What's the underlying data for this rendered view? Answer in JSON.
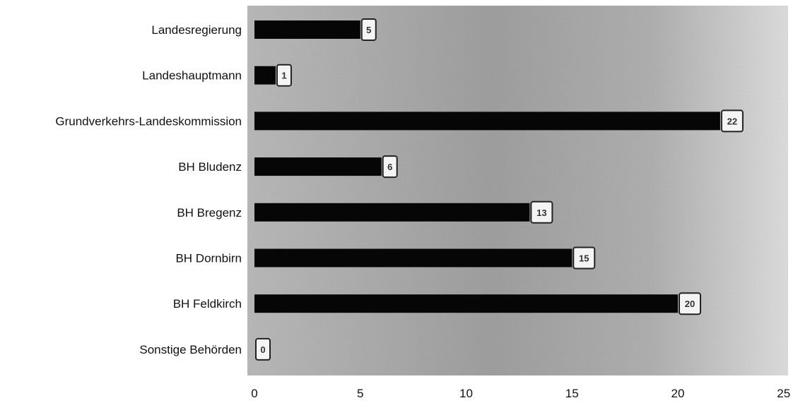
{
  "chart_data": {
    "type": "bar",
    "orientation": "horizontal",
    "categories": [
      "Landesregierung",
      "Landeshauptmann",
      "Grundverkehrs-Landeskommission",
      "BH Bludenz",
      "BH Bregenz",
      "BH Dornbirn",
      "BH Feldkirch",
      "Sonstige Behörden"
    ],
    "values": [
      5,
      1,
      22,
      6,
      13,
      15,
      20,
      0
    ],
    "xlim": [
      0,
      25
    ],
    "xticks": [
      0,
      5,
      10,
      15,
      20,
      25
    ],
    "grid": false,
    "legend": false,
    "data_labels": true,
    "colors": {
      "bar": "#060606",
      "plot_background": "#a9a9a9",
      "plot_background_light": "#dadada"
    }
  }
}
